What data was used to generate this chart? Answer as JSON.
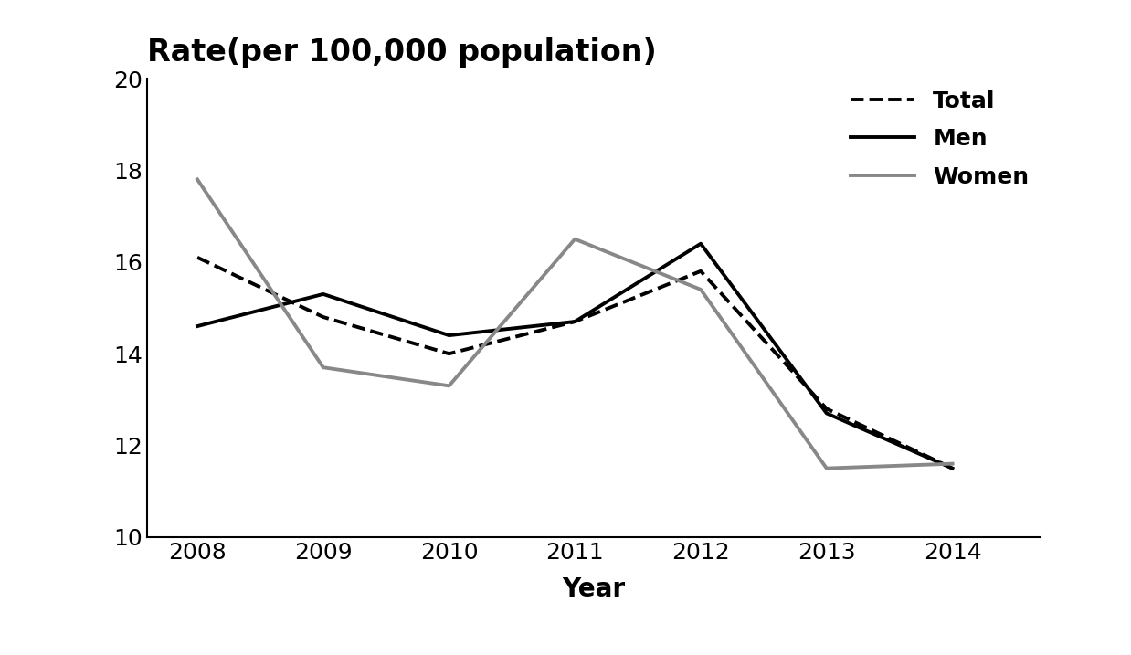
{
  "years": [
    2008,
    2009,
    2010,
    2011,
    2012,
    2013,
    2014
  ],
  "total": [
    16.1,
    14.8,
    14.0,
    14.7,
    15.8,
    12.8,
    11.5
  ],
  "men": [
    14.6,
    15.3,
    14.4,
    14.7,
    16.4,
    12.7,
    11.5
  ],
  "women": [
    17.8,
    13.7,
    13.3,
    16.5,
    15.4,
    11.5,
    11.6
  ],
  "title": "Rate(per 100,000 population)",
  "xlabel": "Year",
  "ylim": [
    10,
    20
  ],
  "yticks": [
    10,
    12,
    14,
    16,
    18,
    20
  ],
  "legend_labels": [
    "Total",
    "Men",
    "Women"
  ],
  "total_color": "#000000",
  "men_color": "#000000",
  "women_color": "#888888",
  "background_color": "#ffffff",
  "title_fontsize": 24,
  "axis_label_fontsize": 20,
  "tick_fontsize": 18,
  "legend_fontsize": 18,
  "linewidth": 2.8
}
